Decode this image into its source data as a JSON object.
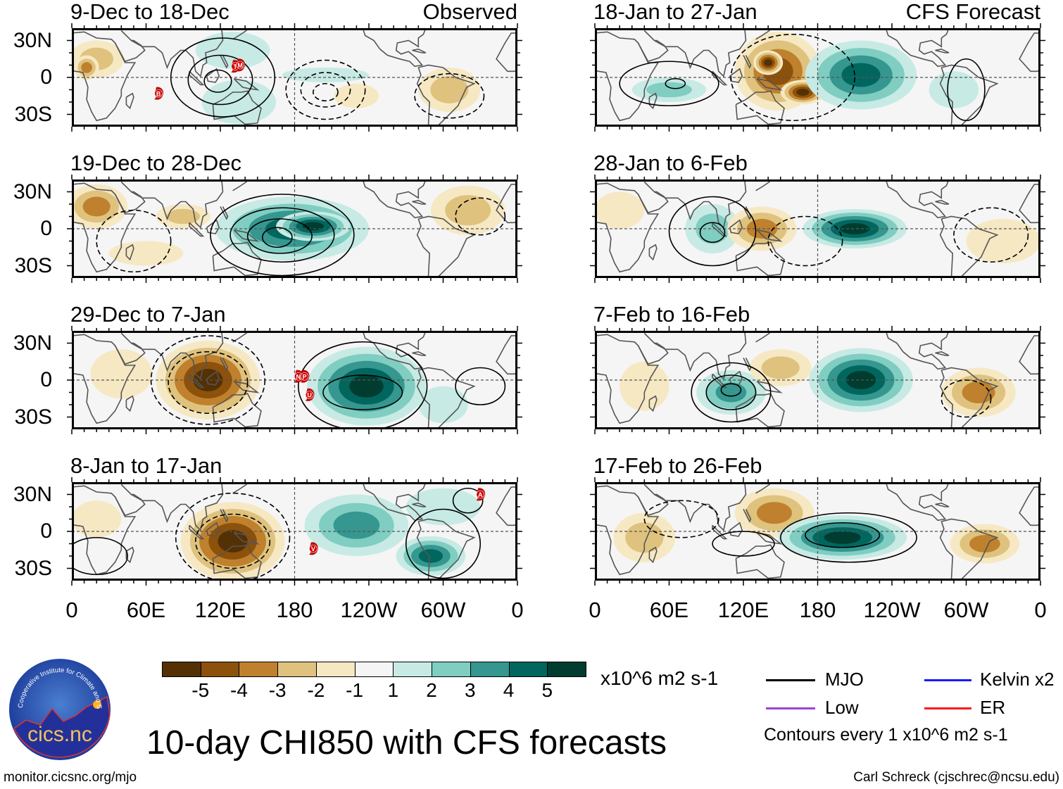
{
  "colors": [
    "#543005",
    "#8c510a",
    "#bf812d",
    "#dfc27d",
    "#f6e8c3",
    "#f5f5f5",
    "#c7eae5",
    "#80cdc1",
    "#35978f",
    "#01665e",
    "#003c30"
  ],
  "axes": {
    "lat_labels": [
      "30N",
      "0",
      "30S"
    ],
    "lon_labels": [
      "0",
      "60E",
      "120E",
      "180",
      "120W",
      "60W",
      "0"
    ]
  },
  "columns": [
    {
      "label": "Observed"
    },
    {
      "label": "CFS Forecast"
    }
  ],
  "panels": [
    {
      "title": "9-Dec to 18-Dec",
      "fills": [
        [
          20,
          15,
          22,
          15,
          -2
        ],
        [
          12,
          8,
          10,
          10,
          -3
        ],
        [
          130,
          22,
          30,
          15,
          1
        ],
        [
          135,
          -20,
          30,
          18,
          1
        ],
        [
          205,
          2,
          35,
          6,
          1
        ],
        [
          305,
          -10,
          25,
          18,
          -2
        ],
        [
          230,
          -15,
          18,
          10,
          -1
        ]
      ],
      "contours": [
        [
          122,
          0,
          42,
          32,
          1
        ],
        [
          120,
          -2,
          26,
          20,
          1
        ],
        [
          118,
          -3,
          11,
          9,
          1
        ],
        [
          205,
          -10,
          32,
          24,
          -1
        ],
        [
          205,
          -10,
          20,
          14,
          -1
        ],
        [
          205,
          -12,
          10,
          7,
          -1
        ],
        [
          305,
          -15,
          28,
          18,
          -1
        ]
      ],
      "storms": [
        {
          "id": "B",
          "lon": 70,
          "lat": -13
        },
        {
          "id": "T",
          "lon": 132,
          "lat": 9
        },
        {
          "id": "M",
          "lon": 136,
          "lat": 10
        }
      ]
    },
    {
      "title": "19-Dec to 28-Dec",
      "fills": [
        [
          20,
          18,
          25,
          18,
          -3
        ],
        [
          90,
          10,
          22,
          10,
          -2
        ],
        [
          178,
          0,
          62,
          26,
          4
        ],
        [
          195,
          2,
          30,
          12,
          5
        ],
        [
          320,
          15,
          30,
          20,
          -2
        ],
        [
          60,
          -20,
          30,
          10,
          -1
        ]
      ],
      "contours": [
        [
          170,
          -5,
          58,
          33,
          1
        ],
        [
          170,
          -5,
          42,
          22,
          1
        ],
        [
          168,
          -6,
          26,
          14,
          1
        ],
        [
          166,
          -7,
          12,
          8,
          1
        ],
        [
          50,
          -10,
          30,
          25,
          -1
        ],
        [
          330,
          10,
          20,
          15,
          -1
        ]
      ],
      "storms": []
    },
    {
      "title": "29-Dec to 7-Jan",
      "fills": [
        [
          110,
          0,
          42,
          32,
          -5
        ],
        [
          40,
          5,
          25,
          20,
          -1
        ],
        [
          238,
          -5,
          48,
          32,
          5
        ],
        [
          300,
          -20,
          20,
          15,
          1
        ]
      ],
      "contours": [
        [
          110,
          0,
          46,
          36,
          -1
        ],
        [
          110,
          -2,
          32,
          25,
          -1
        ],
        [
          235,
          -5,
          52,
          36,
          1
        ],
        [
          235,
          -10,
          32,
          14,
          1
        ],
        [
          330,
          -5,
          20,
          15,
          1
        ]
      ],
      "storms": [
        {
          "id": "N",
          "lon": 183,
          "lat": 3
        },
        {
          "id": "P",
          "lon": 188,
          "lat": 3
        },
        {
          "id": "U",
          "lon": 192,
          "lat": -12
        }
      ]
    },
    {
      "title": "8-Jan to 17-Jan",
      "fills": [
        [
          130,
          -8,
          42,
          32,
          -5
        ],
        [
          230,
          5,
          42,
          25,
          3
        ],
        [
          290,
          -20,
          28,
          16,
          4
        ],
        [
          300,
          20,
          30,
          15,
          1
        ],
        [
          20,
          10,
          20,
          15,
          -1
        ]
      ],
      "contours": [
        [
          130,
          -5,
          46,
          36,
          -1
        ],
        [
          130,
          -8,
          30,
          22,
          -1
        ],
        [
          300,
          -10,
          30,
          28,
          1
        ],
        [
          320,
          25,
          12,
          10,
          1
        ],
        [
          20,
          -20,
          25,
          15,
          1
        ]
      ],
      "storms": [
        {
          "id": "A",
          "lon": 330,
          "lat": 30
        },
        {
          "id": "V",
          "lon": 195,
          "lat": -14
        }
      ]
    },
    {
      "title": "18-Jan to 27-Jan",
      "fills": [
        [
          148,
          5,
          35,
          32,
          -4
        ],
        [
          140,
          12,
          12,
          10,
          -5
        ],
        [
          168,
          -12,
          18,
          10,
          -5
        ],
        [
          215,
          2,
          45,
          28,
          4
        ],
        [
          60,
          -10,
          30,
          10,
          2
        ],
        [
          290,
          -10,
          20,
          15,
          1
        ]
      ],
      "contours": [
        [
          60,
          -5,
          40,
          18,
          1
        ],
        [
          65,
          -5,
          8,
          4,
          1
        ],
        [
          160,
          0,
          50,
          35,
          -1
        ],
        [
          300,
          -10,
          15,
          25,
          1
        ]
      ],
      "storms": []
    },
    {
      "title": "28-Jan to 6-Feb",
      "fills": [
        [
          95,
          0,
          22,
          20,
          2
        ],
        [
          135,
          0,
          28,
          18,
          -3
        ],
        [
          210,
          0,
          42,
          16,
          5
        ],
        [
          330,
          -10,
          30,
          18,
          -1
        ],
        [
          20,
          15,
          20,
          15,
          -1
        ]
      ],
      "contours": [
        [
          95,
          -2,
          35,
          28,
          1
        ],
        [
          95,
          -3,
          10,
          8,
          1
        ],
        [
          170,
          -10,
          30,
          20,
          -1
        ],
        [
          320,
          -5,
          30,
          22,
          -1
        ]
      ],
      "storms": []
    },
    {
      "title": "7-Feb to 16-Feb",
      "fills": [
        [
          110,
          -10,
          28,
          18,
          3
        ],
        [
          150,
          10,
          25,
          15,
          -2
        ],
        [
          215,
          0,
          42,
          26,
          5
        ],
        [
          310,
          -10,
          30,
          20,
          -3
        ],
        [
          40,
          -5,
          20,
          20,
          -1
        ]
      ],
      "contours": [
        [
          110,
          -10,
          32,
          24,
          1
        ],
        [
          110,
          -10,
          20,
          14,
          1
        ],
        [
          110,
          -8,
          8,
          5,
          1
        ],
        [
          300,
          -15,
          20,
          15,
          -1
        ]
      ],
      "storms": []
    },
    {
      "title": "17-Feb to 26-Feb",
      "fills": [
        [
          145,
          15,
          32,
          20,
          -3
        ],
        [
          200,
          -5,
          52,
          18,
          5
        ],
        [
          315,
          -10,
          28,
          16,
          -3
        ],
        [
          40,
          -5,
          25,
          20,
          -2
        ]
      ],
      "contours": [
        [
          205,
          -5,
          55,
          20,
          1
        ],
        [
          200,
          -3,
          30,
          10,
          1
        ],
        [
          120,
          -10,
          25,
          10,
          1
        ],
        [
          70,
          10,
          30,
          15,
          -1
        ]
      ],
      "storms": []
    }
  ],
  "colorbar": {
    "tick_labels": [
      "-5",
      "-4",
      "-3",
      "-2",
      "-1",
      "1",
      "2",
      "3",
      "4",
      "5"
    ],
    "unit": "x10^6 m2 s-1"
  },
  "title": "10-day CHI850 with CFS forecasts",
  "legend": {
    "items": [
      {
        "label": "MJO",
        "color": "#000000"
      },
      {
        "label": "Kelvin x2",
        "color": "#1a1aff"
      },
      {
        "label": "Low",
        "color": "#9a44d6"
      },
      {
        "label": "ER",
        "color": "#ff1a1a"
      }
    ],
    "note": "Contours every 1 x10^6 m2 s-1"
  },
  "logo": {
    "text": "cics.nc",
    "ring_text": "Cooperative Institute for Climate and Satellites"
  },
  "credits": {
    "url": "monitor.cicsnc.org/mjo",
    "author": "Carl Schreck (cjschrec@ncsu.edu)"
  }
}
